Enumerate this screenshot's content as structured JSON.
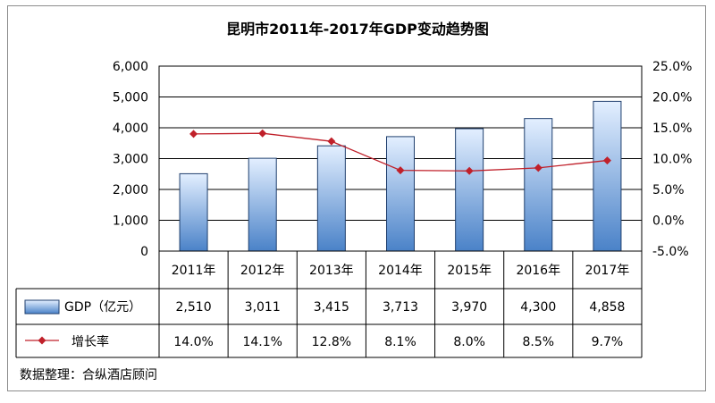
{
  "chart_data": {
    "type": "bar",
    "title": "昆明市2011年-2017年GDP变动趋势图",
    "categories": [
      "2011年",
      "2012年",
      "2013年",
      "2014年",
      "2015年",
      "2016年",
      "2017年"
    ],
    "series": [
      {
        "name": "GDP（亿元）",
        "type": "bar",
        "axis": "left",
        "values": [
          2510,
          3011,
          3415,
          3713,
          3970,
          4300,
          4858
        ],
        "labels": [
          "2,510",
          "3,011",
          "3,415",
          "3,713",
          "3,970",
          "4,300",
          "4,858"
        ]
      },
      {
        "name": "增长率",
        "type": "line",
        "axis": "right",
        "values": [
          14.0,
          14.1,
          12.8,
          8.1,
          8.0,
          8.5,
          9.7
        ],
        "labels": [
          "14.0%",
          "14.1%",
          "12.8%",
          "8.1%",
          "8.0%",
          "8.5%",
          "9.7%"
        ]
      }
    ],
    "y_left": {
      "range": [
        0,
        6000
      ],
      "ticks": [
        0,
        1000,
        2000,
        3000,
        4000,
        5000,
        6000
      ],
      "tick_labels": [
        "0",
        "1,000",
        "2,000",
        "3,000",
        "4,000",
        "5,000",
        "6,000"
      ]
    },
    "y_right": {
      "range": [
        -5,
        25
      ],
      "ticks": [
        -5,
        0,
        5,
        10,
        15,
        20,
        25
      ],
      "tick_labels": [
        "-5.0%",
        "0.0%",
        "5.0%",
        "10.0%",
        "15.0%",
        "20.0%",
        "25.0%"
      ]
    },
    "grid": true,
    "legend": "data-table",
    "colors": {
      "bar_top": "#dfeeff",
      "bar_bottom": "#4f87cc",
      "line": "#c0202a",
      "grid": "#000000"
    }
  },
  "source_note": "数据整理：合纵酒店顾问"
}
